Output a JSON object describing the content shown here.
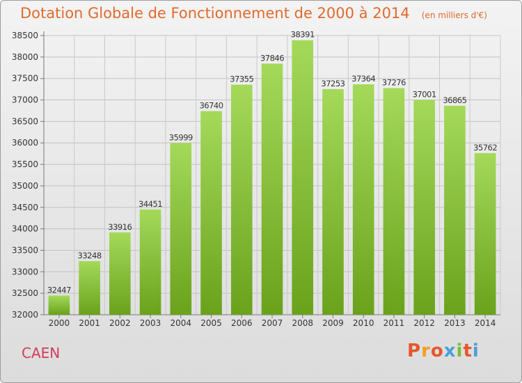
{
  "header": {
    "title": "Dotation Globale de Fonctionnement de 2000 à 2014",
    "unit": "(en milliers d'€)"
  },
  "footer": {
    "city": "CAEN",
    "brand": "Proxiti"
  },
  "colors": {
    "title": "#e06a2c",
    "city": "#d23a5c",
    "bar_top": "#a4d95a",
    "bar_bottom": "#6aa21c",
    "logo_letters": [
      "#e4572e",
      "#f29e1f",
      "#e4572e",
      "#4a9fd8",
      "#7cbd34",
      "#e4572e",
      "#4a9fd8"
    ]
  },
  "chart_data": {
    "type": "bar",
    "categories": [
      "2000",
      "2001",
      "2002",
      "2003",
      "2004",
      "2005",
      "2006",
      "2007",
      "2008",
      "2009",
      "2010",
      "2011",
      "2012",
      "2013",
      "2014"
    ],
    "values": [
      32447,
      33248,
      33916,
      34451,
      35999,
      36740,
      37355,
      37846,
      38391,
      37253,
      37364,
      37276,
      37001,
      36865,
      35762
    ],
    "title": "Dotation Globale de Fonctionnement de 2000 à 2014",
    "subtitle": "(en milliers d'€)",
    "ylim": [
      32000,
      38500
    ],
    "ytick_step": 500,
    "grid": true,
    "data_labels": true
  }
}
